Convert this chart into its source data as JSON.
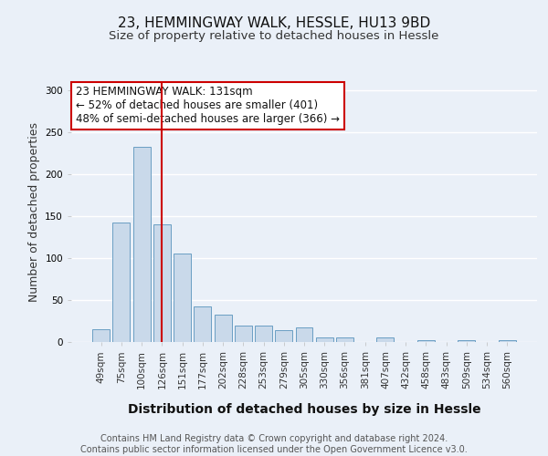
{
  "title1": "23, HEMMINGWAY WALK, HESSLE, HU13 9BD",
  "title2": "Size of property relative to detached houses in Hessle",
  "xlabel": "Distribution of detached houses by size in Hessle",
  "ylabel": "Number of detached properties",
  "categories": [
    "49sqm",
    "75sqm",
    "100sqm",
    "126sqm",
    "151sqm",
    "177sqm",
    "202sqm",
    "228sqm",
    "253sqm",
    "279sqm",
    "305sqm",
    "330sqm",
    "356sqm",
    "381sqm",
    "407sqm",
    "432sqm",
    "458sqm",
    "483sqm",
    "509sqm",
    "534sqm",
    "560sqm"
  ],
  "values": [
    15,
    142,
    233,
    140,
    105,
    42,
    33,
    20,
    20,
    14,
    17,
    5,
    5,
    0,
    5,
    0,
    2,
    0,
    2,
    0,
    2
  ],
  "bar_color": "#c9d9ea",
  "bar_edge_color": "#6a9ec3",
  "highlight_index": 3,
  "red_line_color": "#cc0000",
  "annotation_text": "23 HEMMINGWAY WALK: 131sqm\n← 52% of detached houses are smaller (401)\n48% of semi-detached houses are larger (366) →",
  "annotation_box_color": "#ffffff",
  "annotation_box_edge_color": "#cc0000",
  "ylim": [
    0,
    310
  ],
  "yticks": [
    0,
    50,
    100,
    150,
    200,
    250,
    300
  ],
  "background_color": "#eaf0f8",
  "grid_color": "#ffffff",
  "footer_text": "Contains HM Land Registry data © Crown copyright and database right 2024.\nContains public sector information licensed under the Open Government Licence v3.0.",
  "title1_fontsize": 11,
  "title2_fontsize": 9.5,
  "xlabel_fontsize": 10,
  "ylabel_fontsize": 9,
  "tick_fontsize": 7.5,
  "annotation_fontsize": 8.5,
  "footer_fontsize": 7
}
